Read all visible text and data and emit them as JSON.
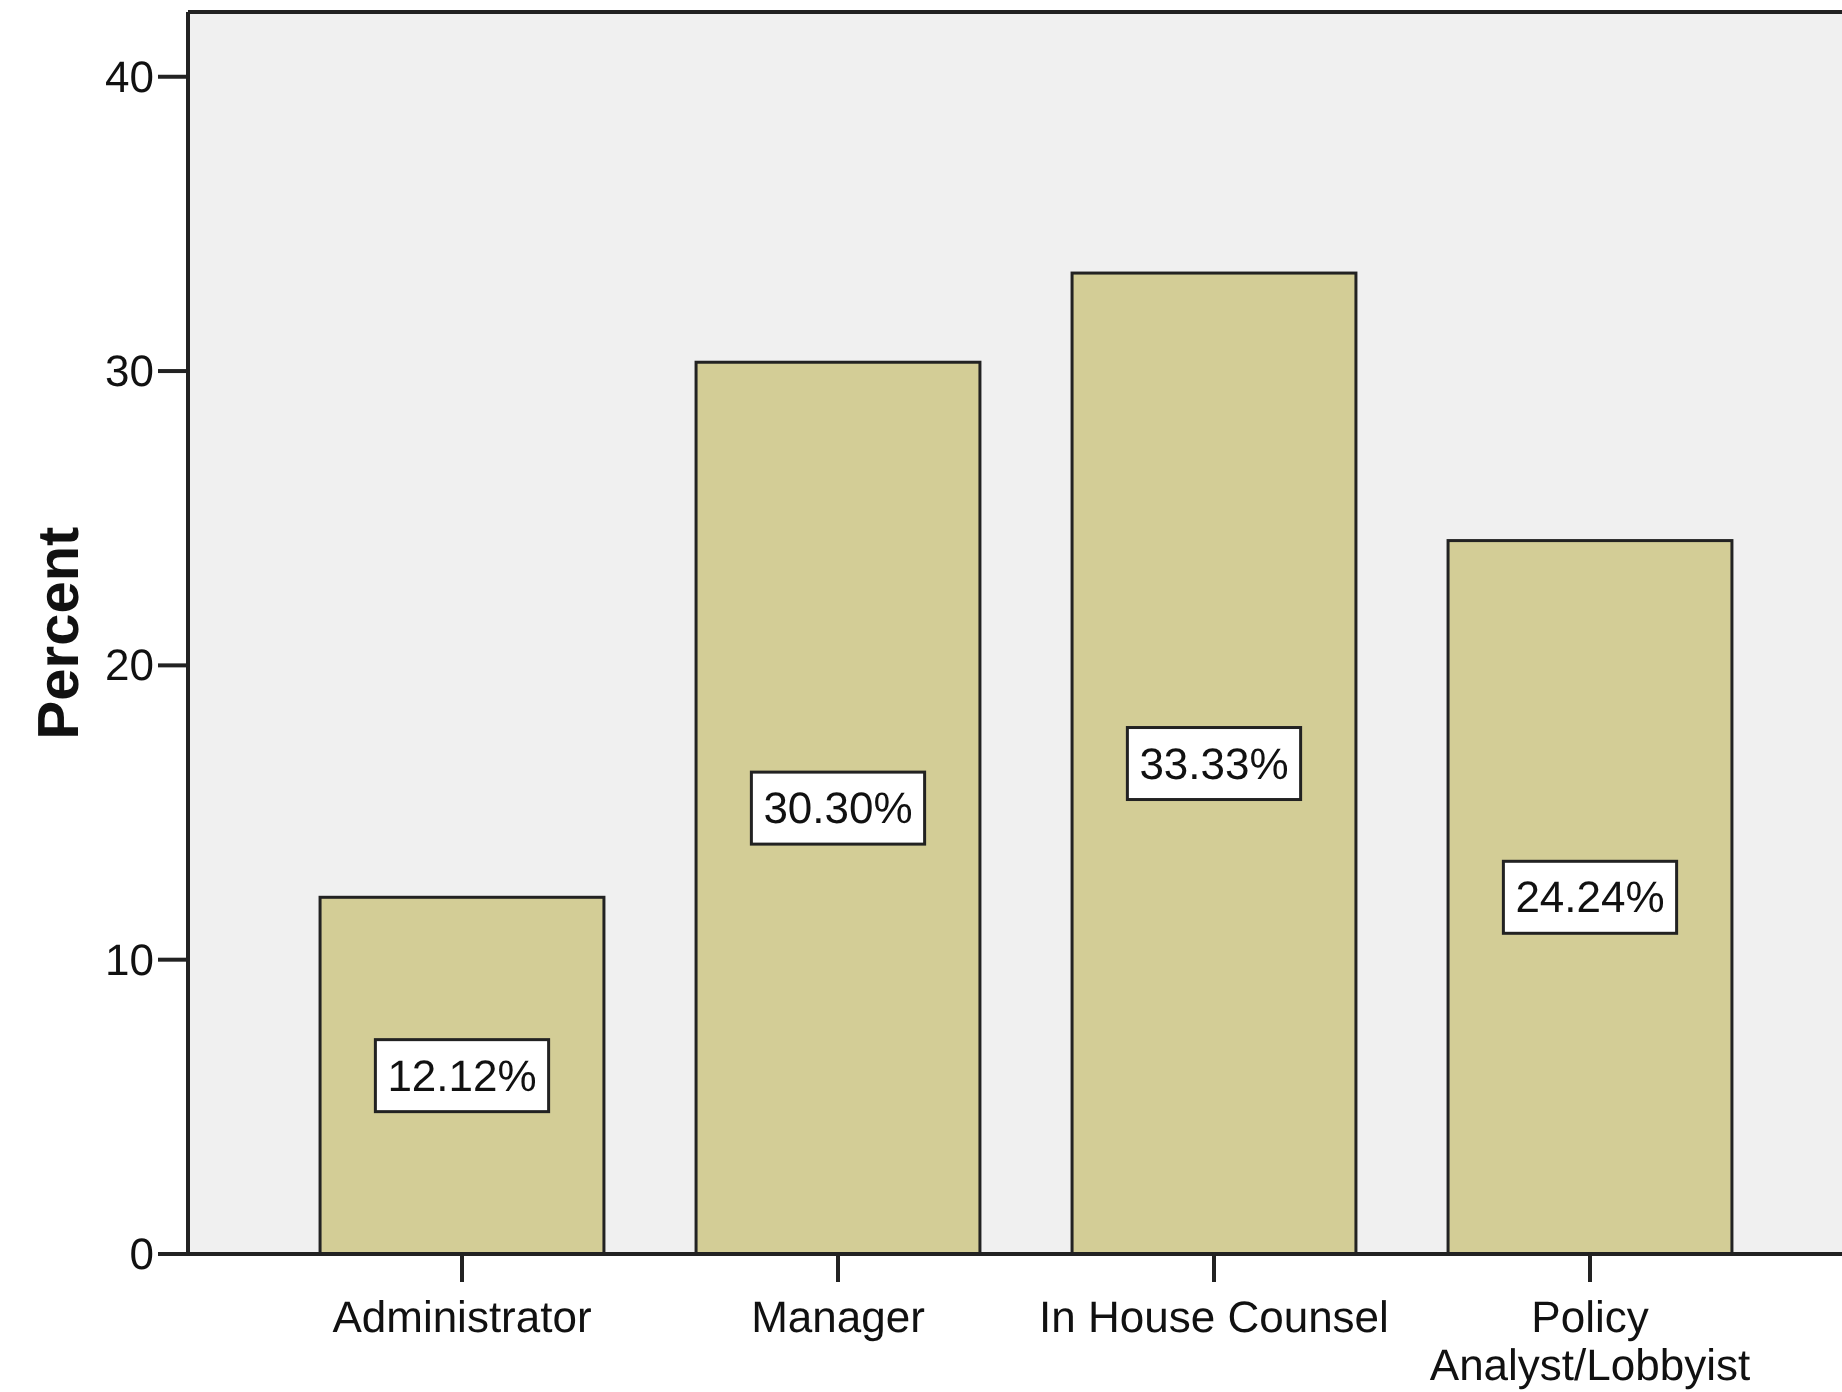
{
  "chart_data": {
    "type": "bar",
    "ylabel": "Percent",
    "categories": [
      "Administrator",
      "Manager",
      "In House Counsel",
      "Policy Analyst/Lobbyist"
    ],
    "values": [
      12.12,
      30.3,
      33.33,
      24.24
    ],
    "color": "#d3cd96",
    "value_labels": [
      "12.12%",
      "30.30%",
      "33.33%",
      "24.24%"
    ],
    "ylim": [
      0,
      42.2
    ],
    "yticks": [
      0,
      10,
      20,
      30,
      40
    ]
  }
}
